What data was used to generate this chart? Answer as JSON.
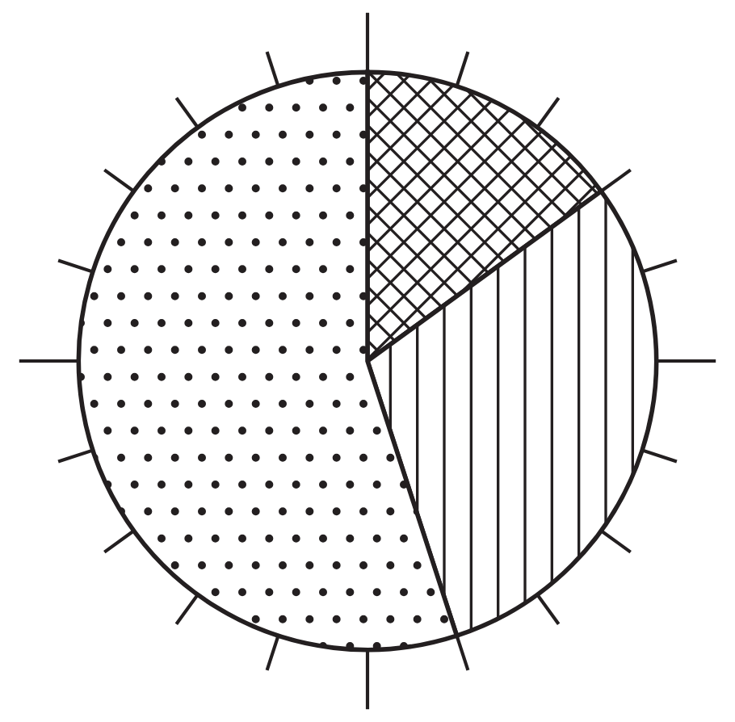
{
  "chart_data": {
    "type": "pie",
    "categories": [
      null,
      null,
      null
    ],
    "values": [
      15,
      30,
      55
    ],
    "colors": [
      "#231f20",
      "#231f20",
      "#231f20"
    ]
  }
}
